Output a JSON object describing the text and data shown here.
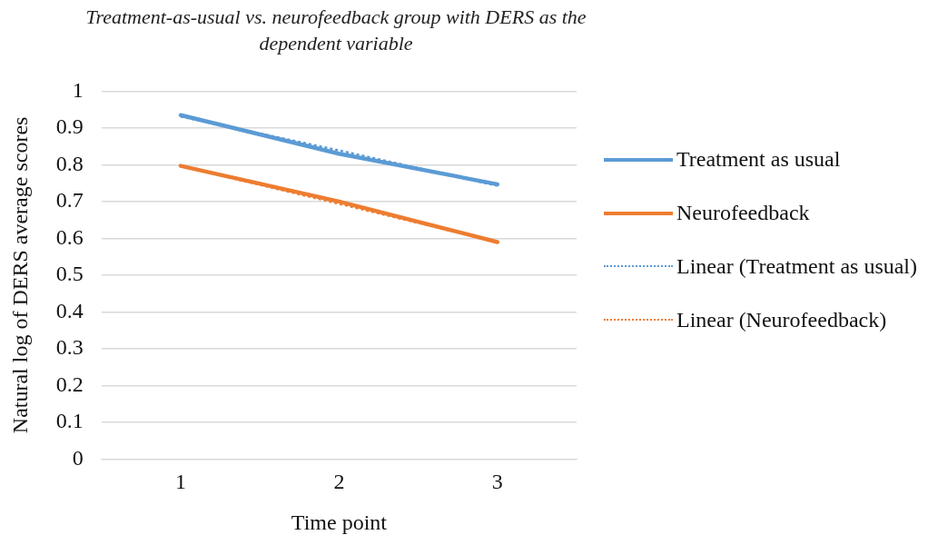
{
  "chart_data": {
    "type": "line",
    "title": "Treatment-as-usual vs. neurofeedback group with DERS as the dependent variable",
    "xlabel": "Time point",
    "ylabel": "Natural log of DERS average scores",
    "categories": [
      "1",
      "2",
      "3"
    ],
    "series": [
      {
        "name": "Treatment as usual",
        "color": "#5b9bd5",
        "values": [
          0.935,
          0.83,
          0.747
        ]
      },
      {
        "name": "Neurofeedback",
        "color": "#ed7d31",
        "values": [
          0.797,
          0.7,
          0.59
        ]
      },
      {
        "name": "Linear (Treatment as usual)",
        "color": "#5b9bd5",
        "values": [
          0.931,
          0.839,
          0.743
        ],
        "line_style": "dotted"
      },
      {
        "name": "Linear (Neurofeedback)",
        "color": "#ed7d31",
        "values": [
          0.797,
          0.694,
          0.59
        ],
        "line_style": "dotted"
      }
    ],
    "ylim": [
      0,
      1
    ],
    "yticks": [
      0,
      0.1,
      0.2,
      0.3,
      0.4,
      0.5,
      0.6,
      0.7,
      0.8,
      0.9,
      1
    ],
    "grid": "y",
    "legend": "right",
    "marker": "none",
    "line_style": "solid"
  }
}
